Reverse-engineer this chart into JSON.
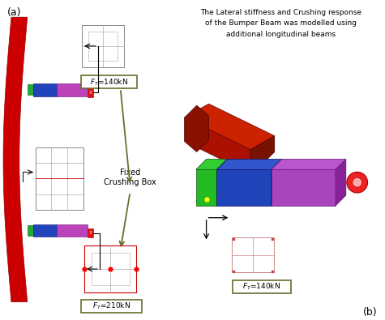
{
  "fig_width": 4.75,
  "fig_height": 3.95,
  "dpi": 100,
  "bg_color": "#ffffff",
  "label_a": "(a)",
  "label_b": "(b)",
  "olive": "#6B6B2F",
  "red_bumper": "#cc0000",
  "blue_box": "#2244bb",
  "magenta_box": "#bb44bb",
  "green_box": "#22aa33",
  "dark_red": "#8b0000",
  "fixed_crushing_box_label": "Fixed\nCrushing Box",
  "lateral_text": "The Lateral stiffness and Crushing response\nof the Bumper Beam was modelled using\nadditional longitudinal beams"
}
